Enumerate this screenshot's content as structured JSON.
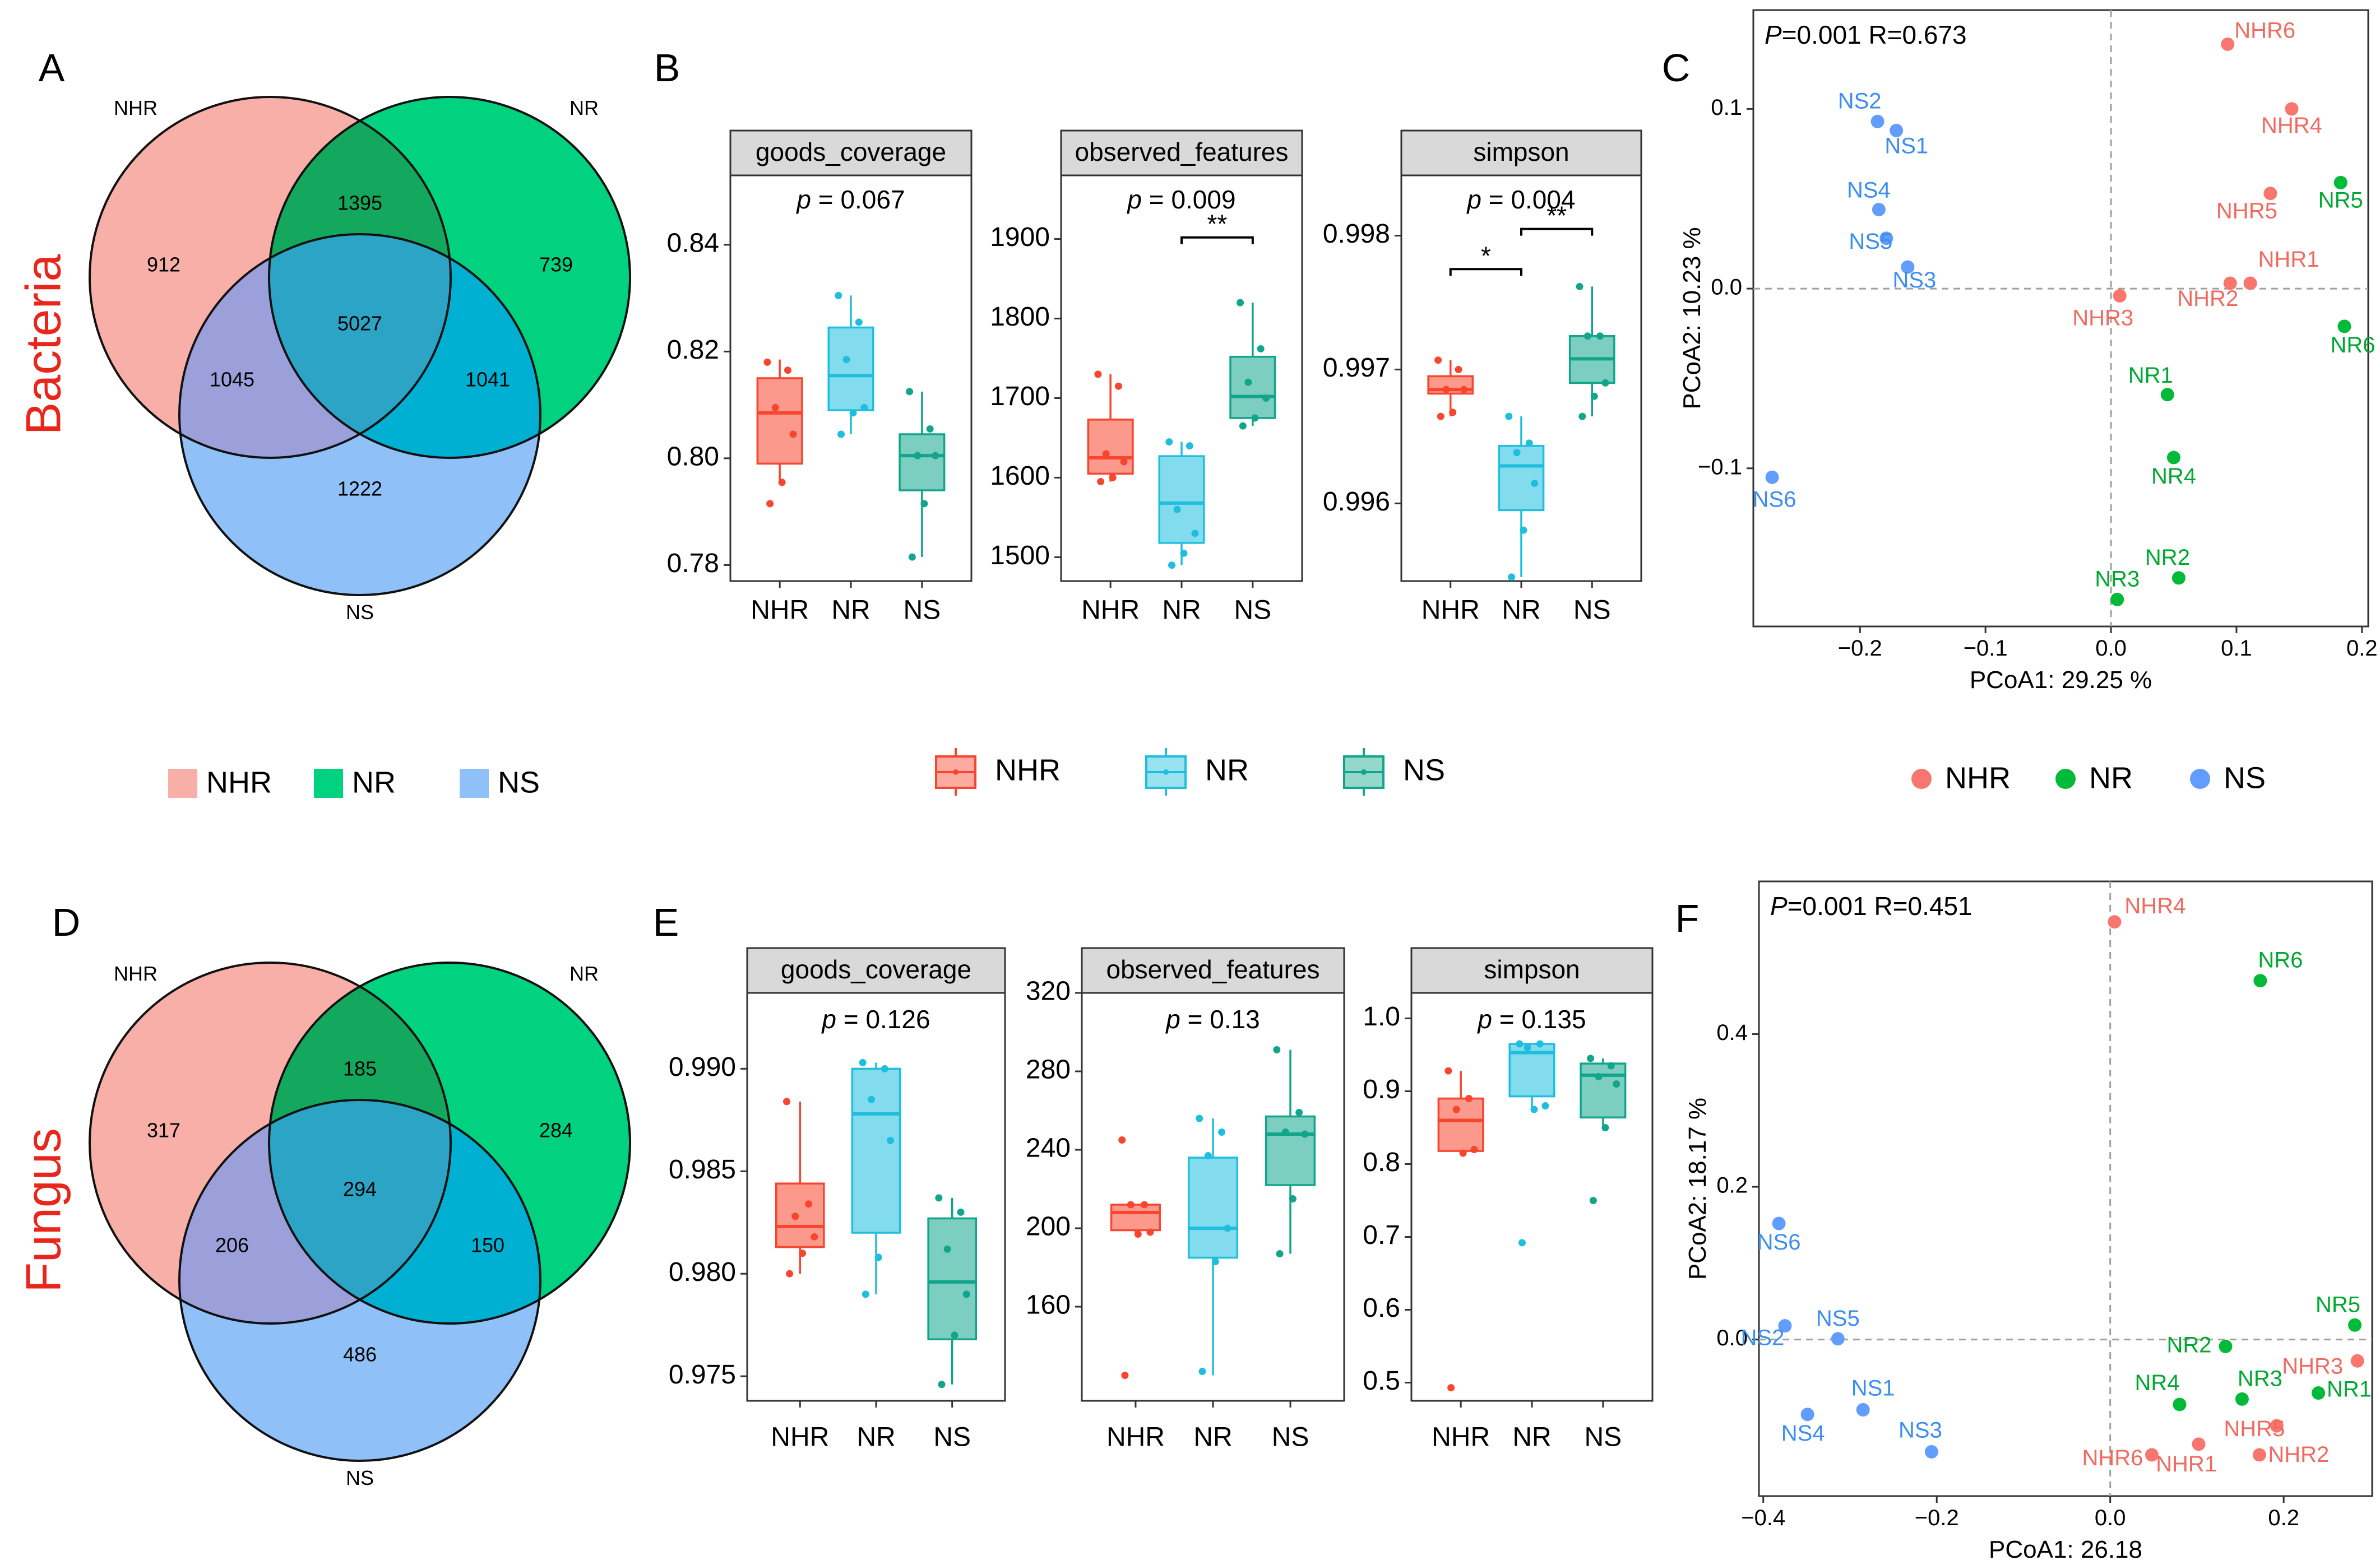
{
  "colors": {
    "NHR": "#F8766D",
    "NR": "#00BA38",
    "NS": "#619CFF",
    "box_NHR": "#F8452E",
    "box_NR": "#1EBFDE",
    "box_NS": "#11A58C",
    "venn_NHR": "#F8AFA8",
    "venn_NR": "#00D27F",
    "venn_NS": "#8FC1F8",
    "red": "#E8261C"
  },
  "legends": {
    "venn": [
      "NHR",
      "NR",
      "NS"
    ],
    "box": [
      "NHR",
      "NR",
      "NS"
    ],
    "pcoa": [
      "NHR",
      "NR",
      "NS"
    ]
  },
  "chart_data": [
    {
      "panel": "A",
      "type": "venn",
      "row_label": "Bacteria",
      "sets": [
        "NHR",
        "NR",
        "NS"
      ],
      "regions": {
        "NHR_only": "912",
        "NR_only": "739",
        "NS_only": "1222",
        "NHR_NR": "1395",
        "NHR_NS": "1045",
        "NR_NS": "1041",
        "all": "5027"
      }
    },
    {
      "panel": "B",
      "type": "boxplot",
      "groups": [
        "NHR",
        "NR",
        "NS"
      ],
      "facets": [
        {
          "title": "goods_coverage",
          "ylim": [
            0.777,
            0.853
          ],
          "ticks": [
            0.78,
            0.8,
            0.82,
            0.84
          ],
          "tick_labels": [
            "0.78",
            "0.80",
            "0.82",
            "0.84"
          ],
          "pvalue": "0.067",
          "boxes": [
            {
              "min": 0.795,
              "q1": 0.799,
              "median": 0.8085,
              "q3": 0.815,
              "max": 0.8185
            },
            {
              "min": 0.8045,
              "q1": 0.809,
              "median": 0.8155,
              "q3": 0.8245,
              "max": 0.8305
            },
            {
              "min": 0.7815,
              "q1": 0.794,
              "median": 0.8005,
              "q3": 0.8045,
              "max": 0.8125
            }
          ],
          "points": [
            [
              0.818,
              0.8165,
              0.8095,
              0.8045,
              0.7955,
              0.7915
            ],
            [
              0.8305,
              0.8255,
              0.8185,
              0.8095,
              0.8085,
              0.8045
            ],
            [
              0.8125,
              0.8055,
              0.8005,
              0.8005,
              0.7915,
              0.7815
            ]
          ],
          "brackets": []
        },
        {
          "title": "observed_features",
          "ylim": [
            1470,
            1980
          ],
          "ticks": [
            1500,
            1600,
            1700,
            1800,
            1900
          ],
          "tick_labels": [
            "1500",
            "1600",
            "1700",
            "1800",
            "1900"
          ],
          "pvalue": "0.009",
          "boxes": [
            {
              "min": 1595,
              "q1": 1605,
              "median": 1625,
              "q3": 1673,
              "max": 1730
            },
            {
              "min": 1490,
              "q1": 1518,
              "median": 1568,
              "q3": 1627,
              "max": 1645
            },
            {
              "min": 1665,
              "q1": 1675,
              "median": 1702,
              "q3": 1752,
              "max": 1820
            }
          ],
          "points": [
            [
              1730,
              1715,
              1630,
              1620,
              1600,
              1595
            ],
            [
              1645,
              1640,
              1560,
              1530,
              1505,
              1490
            ],
            [
              1820,
              1762,
              1720,
              1700,
              1675,
              1665
            ]
          ],
          "brackets": [
            {
              "from": 1,
              "to": 2,
              "label": "**",
              "y": 1902
            }
          ]
        },
        {
          "title": "simpson",
          "ylim": [
            0.99542,
            0.99845
          ],
          "ticks": [
            0.996,
            0.997,
            0.998
          ],
          "tick_labels": [
            "0.996",
            "0.997",
            "0.998"
          ],
          "pvalue": "0.004",
          "boxes": [
            {
              "min": 0.99665,
              "q1": 0.99682,
              "median": 0.99685,
              "q3": 0.99695,
              "max": 0.99707
            },
            {
              "min": 0.99545,
              "q1": 0.99595,
              "median": 0.99628,
              "q3": 0.99643,
              "max": 0.99665
            },
            {
              "min": 0.99665,
              "q1": 0.9969,
              "median": 0.99708,
              "q3": 0.99725,
              "max": 0.99762
            }
          ],
          "points": [
            [
              0.99707,
              0.997,
              0.99685,
              0.99685,
              0.99668,
              0.99665
            ],
            [
              0.99665,
              0.99645,
              0.99638,
              0.99615,
              0.9958,
              0.99545
            ],
            [
              0.99762,
              0.99725,
              0.99725,
              0.9969,
              0.9968,
              0.99665
            ]
          ],
          "brackets": [
            {
              "from": 0,
              "to": 1,
              "label": "*",
              "y": 0.99775
            },
            {
              "from": 1,
              "to": 2,
              "label": "**",
              "y": 0.99805
            }
          ]
        }
      ]
    },
    {
      "panel": "C",
      "type": "scatter",
      "xlabel": "PCoA1:  29.25 %",
      "ylabel": "PCoA2:  10.23 %",
      "xlim": [
        -0.285,
        0.205
      ],
      "ylim": [
        -0.188,
        0.155
      ],
      "xticks": [
        -0.2,
        -0.1,
        0.0,
        0.1,
        0.2
      ],
      "xtick_labels": [
        "−0.2",
        "−0.1",
        "0.0",
        "0.1",
        "0.2"
      ],
      "yticks": [
        -0.1,
        0.0,
        0.1
      ],
      "ytick_labels": [
        "−0.1",
        "0.0",
        "0.1"
      ],
      "annotation": {
        "p": "P",
        "rest": "=0.001  R=0.673"
      },
      "points": [
        {
          "label": "NHR6",
          "group": "NHR",
          "x": 0.093,
          "y": 0.136
        },
        {
          "label": "NHR4",
          "group": "NHR",
          "x": 0.144,
          "y": 0.1
        },
        {
          "label": "NHR5",
          "group": "NHR",
          "x": 0.127,
          "y": 0.053
        },
        {
          "label": "NHR1",
          "group": "NHR",
          "x": 0.111,
          "y": 0.003
        },
        {
          "label": "NHR2",
          "group": "NHR",
          "x": 0.095,
          "y": 0.003
        },
        {
          "label": "NHR3",
          "group": "NHR",
          "x": 0.007,
          "y": -0.004
        },
        {
          "label": "NR5",
          "group": "NR",
          "x": 0.183,
          "y": 0.059
        },
        {
          "label": "NR6",
          "group": "NR",
          "x": 0.186,
          "y": -0.021
        },
        {
          "label": "NR1",
          "group": "NR",
          "x": 0.045,
          "y": -0.059
        },
        {
          "label": "NR4",
          "group": "NR",
          "x": 0.05,
          "y": -0.094
        },
        {
          "label": "NR2",
          "group": "NR",
          "x": 0.054,
          "y": -0.161
        },
        {
          "label": "NR3",
          "group": "NR",
          "x": 0.005,
          "y": -0.173
        },
        {
          "label": "NS2",
          "group": "NS",
          "x": -0.186,
          "y": 0.093
        },
        {
          "label": "NS1",
          "group": "NS",
          "x": -0.171,
          "y": 0.088
        },
        {
          "label": "NS4",
          "group": "NS",
          "x": -0.185,
          "y": 0.044
        },
        {
          "label": "NS5",
          "group": "NS",
          "x": -0.179,
          "y": 0.028
        },
        {
          "label": "NS3",
          "group": "NS",
          "x": -0.162,
          "y": 0.012
        },
        {
          "label": "NS6",
          "group": "NS",
          "x": -0.27,
          "y": -0.105
        }
      ]
    },
    {
      "panel": "D",
      "type": "venn",
      "row_label": "Fungus",
      "sets": [
        "NHR",
        "NR",
        "NS"
      ],
      "regions": {
        "NHR_only": "317",
        "NR_only": "284",
        "NS_only": "486",
        "NHR_NR": "185",
        "NHR_NS": "206",
        "NR_NS": "150",
        "all": "294"
      }
    },
    {
      "panel": "E",
      "type": "boxplot",
      "groups": [
        "NHR",
        "NR",
        "NS"
      ],
      "facets": [
        {
          "title": "goods_coverage",
          "ylim": [
            0.9738,
            0.9937
          ],
          "ticks": [
            0.975,
            0.98,
            0.985,
            0.99
          ],
          "tick_labels": [
            "0.975",
            "0.980",
            "0.985",
            "0.990"
          ],
          "pvalue": "0.126",
          "boxes": [
            {
              "min": 0.98,
              "q1": 0.9813,
              "median": 0.9823,
              "q3": 0.9844,
              "max": 0.9884
            },
            {
              "min": 0.979,
              "q1": 0.982,
              "median": 0.9878,
              "q3": 0.99,
              "max": 0.9903
            },
            {
              "min": 0.9746,
              "q1": 0.9768,
              "median": 0.9796,
              "q3": 0.9827,
              "max": 0.9837
            }
          ],
          "points": [
            [
              0.9884,
              0.9834,
              0.9828,
              0.9818,
              0.981,
              0.98
            ],
            [
              0.9903,
              0.99,
              0.9885,
              0.9865,
              0.9808,
              0.979
            ],
            [
              0.9837,
              0.983,
              0.9812,
              0.979,
              0.977,
              0.9746
            ]
          ],
          "brackets": []
        },
        {
          "title": "observed_features",
          "ylim": [
            112,
            320
          ],
          "ticks": [
            160,
            200,
            240,
            280,
            320
          ],
          "tick_labels": [
            "160",
            "200",
            "240",
            "280",
            "320"
          ],
          "pvalue": "0.13",
          "boxes": [
            {
              "min": 198,
              "q1": 199,
              "median": 208,
              "q3": 212,
              "max": 212
            },
            {
              "min": 125,
              "q1": 185,
              "median": 200,
              "q3": 236,
              "max": 256
            },
            {
              "min": 187,
              "q1": 222,
              "median": 248,
              "q3": 257,
              "max": 291
            }
          ],
          "points": [
            [
              245,
              212,
              212,
              198,
              197,
              125
            ],
            [
              256,
              249,
              237,
              200,
              183,
              127
            ],
            [
              291,
              259,
              249,
              248,
              215,
              187
            ]
          ],
          "brackets": []
        },
        {
          "title": "simpson",
          "ylim": [
            0.475,
            1.035
          ],
          "ticks": [
            0.5,
            0.6,
            0.7,
            0.8,
            0.9,
            1.0
          ],
          "tick_labels": [
            "0.5",
            "0.6",
            "0.7",
            "0.8",
            "0.9",
            "1.0"
          ],
          "pvalue": "0.135",
          "boxes": [
            {
              "min": 0.815,
              "q1": 0.818,
              "median": 0.86,
              "q3": 0.89,
              "max": 0.928
            },
            {
              "min": 0.875,
              "q1": 0.893,
              "median": 0.953,
              "q3": 0.965,
              "max": 0.965
            },
            {
              "min": 0.85,
              "q1": 0.864,
              "median": 0.922,
              "q3": 0.938,
              "max": 0.945
            }
          ],
          "points": [
            [
              0.928,
              0.89,
              0.875,
              0.82,
              0.815,
              0.493
            ],
            [
              0.965,
              0.965,
              0.96,
              0.88,
              0.875,
              0.692
            ],
            [
              0.945,
              0.935,
              0.92,
              0.91,
              0.85,
              0.75
            ]
          ],
          "brackets": []
        }
      ]
    },
    {
      "panel": "F",
      "type": "scatter",
      "xlabel": "PCoA1:  26.18",
      "ylabel": "PCoA2:  18.17 %",
      "xlim": [
        -0.405,
        0.302
      ],
      "ylim": [
        -0.205,
        0.6
      ],
      "xticks": [
        -0.4,
        -0.2,
        0.0,
        0.2
      ],
      "xtick_labels": [
        "−0.4",
        "−0.2",
        "0.0",
        "0.2"
      ],
      "yticks": [
        0.0,
        0.2,
        0.4
      ],
      "ytick_labels": [
        "0.0",
        "0.2",
        "0.4"
      ],
      "annotation": {
        "p": "P",
        "rest": "=0.001   R=0.451"
      },
      "points": [
        {
          "label": "NHR4",
          "group": "NHR",
          "x": 0.005,
          "y": 0.547
        },
        {
          "label": "NHR3",
          "group": "NHR",
          "x": 0.285,
          "y": -0.028
        },
        {
          "label": "NHR5",
          "group": "NHR",
          "x": 0.192,
          "y": -0.113
        },
        {
          "label": "NHR1",
          "group": "NHR",
          "x": 0.102,
          "y": -0.137
        },
        {
          "label": "NHR2",
          "group": "NHR",
          "x": 0.172,
          "y": -0.151
        },
        {
          "label": "NHR6",
          "group": "NHR",
          "x": 0.048,
          "y": -0.151
        },
        {
          "label": "NR6",
          "group": "NR",
          "x": 0.173,
          "y": 0.47
        },
        {
          "label": "NR5",
          "group": "NR",
          "x": 0.282,
          "y": 0.019
        },
        {
          "label": "NR2",
          "group": "NR",
          "x": 0.133,
          "y": -0.009
        },
        {
          "label": "NR1",
          "group": "NR",
          "x": 0.24,
          "y": -0.07
        },
        {
          "label": "NR3",
          "group": "NR",
          "x": 0.152,
          "y": -0.078
        },
        {
          "label": "NR4",
          "group": "NR",
          "x": 0.08,
          "y": -0.085
        },
        {
          "label": "NS6",
          "group": "NS",
          "x": -0.382,
          "y": 0.152
        },
        {
          "label": "NS2",
          "group": "NS",
          "x": -0.375,
          "y": 0.018
        },
        {
          "label": "NS5",
          "group": "NS",
          "x": -0.314,
          "y": 0.001
        },
        {
          "label": "NS1",
          "group": "NS",
          "x": -0.285,
          "y": -0.092
        },
        {
          "label": "NS4",
          "group": "NS",
          "x": -0.349,
          "y": -0.098
        },
        {
          "label": "NS3",
          "group": "NS",
          "x": -0.206,
          "y": -0.147
        }
      ]
    }
  ]
}
